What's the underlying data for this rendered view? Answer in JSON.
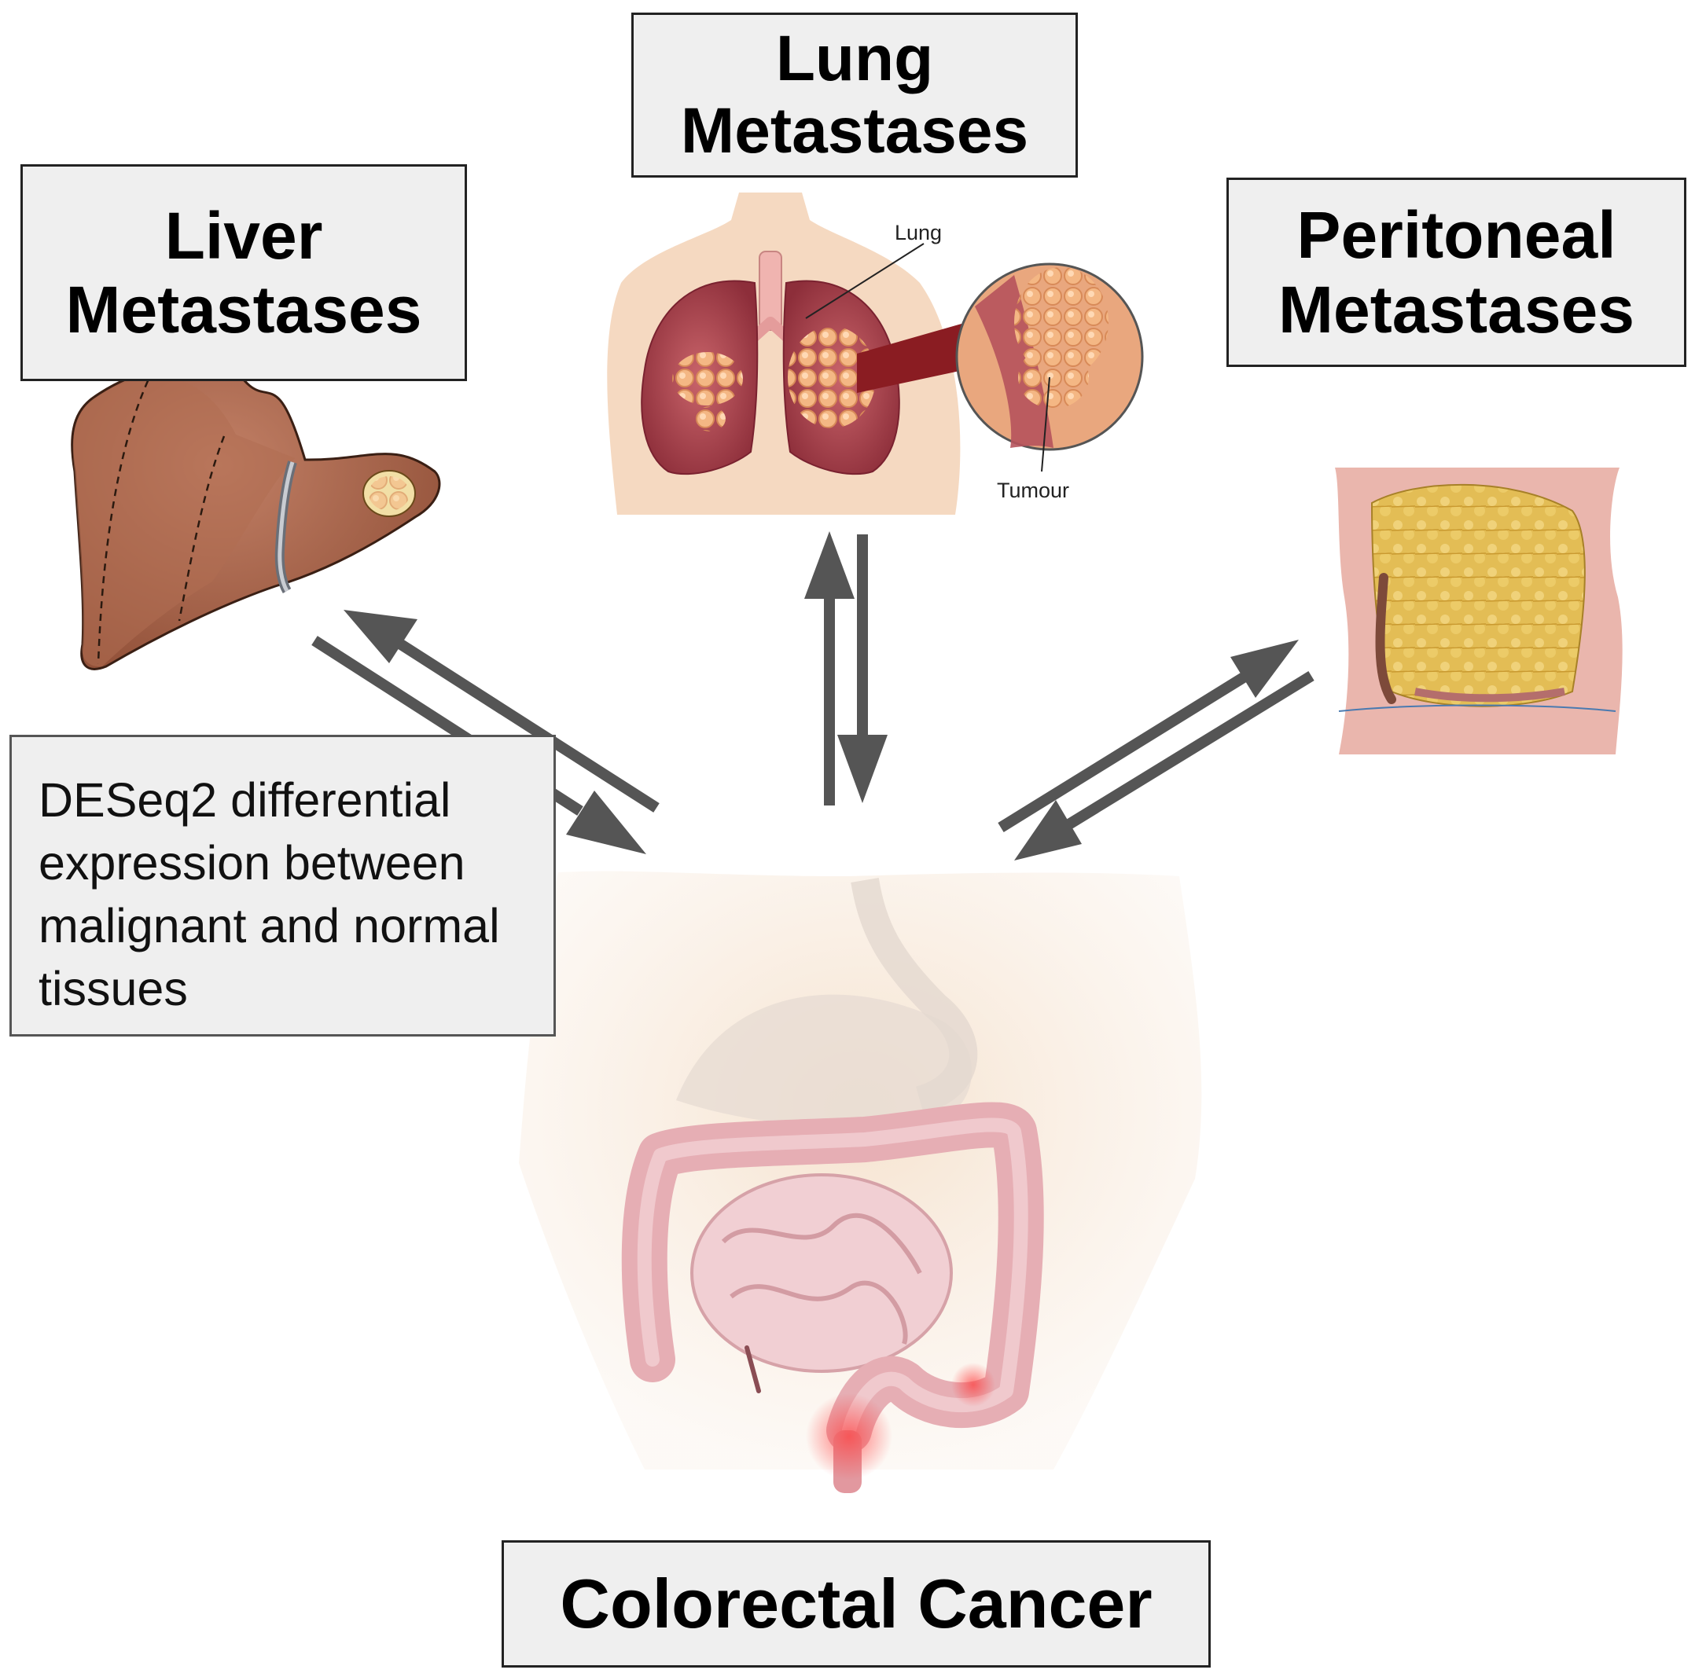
{
  "labels": {
    "liver": [
      "Liver",
      "Metastases"
    ],
    "lung": [
      "Lung",
      "Metastases"
    ],
    "peritoneal": [
      "Peritoneal",
      "Metastases"
    ],
    "colorectal": "Colorectal Cancer"
  },
  "annotation": {
    "lines": [
      "DESeq2 differential",
      "expression between",
      "malignant and normal",
      "tissues"
    ]
  },
  "lung_illustration": {
    "lung_callout": "Lung",
    "tumour_callout": "Tumour"
  },
  "colors": {
    "box_fill": "#efefef",
    "arrow": "#555555",
    "skin": "#f3dfca",
    "liver": "#a8664b",
    "lung": "#b6535c",
    "tumour": "#f4b784",
    "bowel": "#e6aeb4"
  }
}
